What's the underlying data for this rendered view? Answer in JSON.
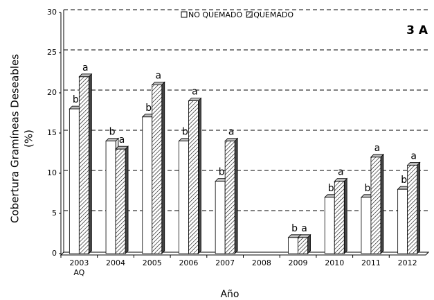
{
  "chart_data": {
    "type": "bar",
    "title": "3 A",
    "x_label": "Año",
    "y_label": "Cobertura Gramíneas Deseables",
    "y_unit": "(%)",
    "categories": [
      "2003\nAQ",
      "2004",
      "2005",
      "2006",
      "2007",
      "2008",
      "2009",
      "2010",
      "2011",
      "2012"
    ],
    "series": [
      {
        "name": "NO QUEMADO",
        "color": "#ffffff",
        "hatch": false,
        "values": [
          18,
          14,
          17,
          14,
          9,
          null,
          2,
          7,
          7,
          8
        ],
        "letters": [
          "b",
          "b",
          "b",
          "b",
          "b",
          null,
          "b",
          "b",
          "b",
          "b"
        ]
      },
      {
        "name": "QUEMADO",
        "color": "#ffffff",
        "hatch": true,
        "values": [
          22,
          13,
          21,
          19,
          14,
          null,
          2,
          9,
          12,
          11
        ],
        "letters": [
          "a",
          "a",
          "a",
          "a",
          "a",
          null,
          "a",
          "a",
          "a",
          "a"
        ]
      }
    ],
    "ylim": [
      0,
      30
    ],
    "yticks": [
      0,
      5,
      10,
      15,
      20,
      25,
      30
    ],
    "grid": true,
    "legend": "top"
  }
}
